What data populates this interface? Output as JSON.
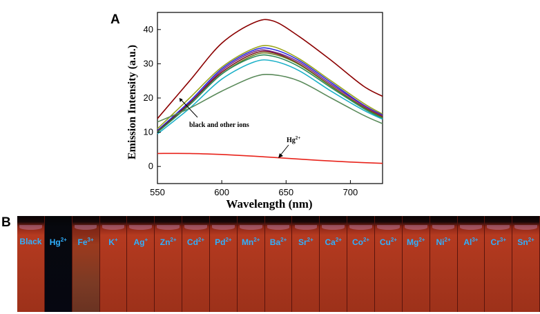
{
  "panel_a_label": "A",
  "panel_b_label": "B",
  "chart_data": {
    "type": "line",
    "xlabel": "Wavelength (nm)",
    "ylabel": "Emission Intensity (a.u.)",
    "xlim": [
      550,
      725
    ],
    "ylim": [
      -5,
      45
    ],
    "x_ticks": [
      550,
      600,
      650,
      700
    ],
    "y_ticks": [
      0,
      10,
      20,
      30,
      40
    ],
    "grid": false,
    "annotations": [
      {
        "text": "black and other ions",
        "arrow_to": [
          567,
          20
        ]
      },
      {
        "text": "Hg",
        "superscript": "2+",
        "arrow_to": [
          650,
          2.4
        ]
      }
    ],
    "series": [
      {
        "name": "top",
        "color": "#8b0000",
        "points": [
          [
            550,
            14
          ],
          [
            575,
            25
          ],
          [
            600,
            36
          ],
          [
            625,
            42
          ],
          [
            640,
            42.5
          ],
          [
            660,
            38
          ],
          [
            685,
            31
          ],
          [
            710,
            23.5
          ],
          [
            725,
            20.5
          ]
        ]
      },
      {
        "name": "yellow-green",
        "color": "#9aa51a",
        "points": [
          [
            550,
            11
          ],
          [
            575,
            20
          ],
          [
            600,
            29
          ],
          [
            625,
            34.5
          ],
          [
            640,
            35
          ],
          [
            660,
            31.5
          ],
          [
            685,
            25
          ],
          [
            710,
            18.5
          ],
          [
            725,
            15.3
          ]
        ]
      },
      {
        "name": "blue",
        "color": "#2a2ae0",
        "points": [
          [
            550,
            10.5
          ],
          [
            575,
            19
          ],
          [
            600,
            28.5
          ],
          [
            625,
            34
          ],
          [
            640,
            34.2
          ],
          [
            660,
            31
          ],
          [
            685,
            24.5
          ],
          [
            710,
            18
          ],
          [
            725,
            15
          ]
        ]
      },
      {
        "name": "purple",
        "color": "#7a2a8a",
        "points": [
          [
            550,
            10
          ],
          [
            575,
            18.5
          ],
          [
            600,
            28
          ],
          [
            625,
            33.5
          ],
          [
            640,
            33.5
          ],
          [
            660,
            30.5
          ],
          [
            685,
            24
          ],
          [
            710,
            17.8
          ],
          [
            725,
            14.8
          ]
        ]
      },
      {
        "name": "dark-red",
        "color": "#7a1818",
        "points": [
          [
            550,
            10.2
          ],
          [
            575,
            18.5
          ],
          [
            600,
            27.5
          ],
          [
            625,
            33
          ],
          [
            640,
            33.2
          ],
          [
            660,
            30
          ],
          [
            685,
            23.5
          ],
          [
            710,
            17.4
          ],
          [
            725,
            14.5
          ]
        ]
      },
      {
        "name": "olive",
        "color": "#6a7a20",
        "points": [
          [
            550,
            10
          ],
          [
            575,
            18
          ],
          [
            600,
            27
          ],
          [
            625,
            32.5
          ],
          [
            640,
            32.8
          ],
          [
            660,
            29.8
          ],
          [
            685,
            23.4
          ],
          [
            710,
            17.2
          ],
          [
            725,
            14.3
          ]
        ]
      },
      {
        "name": "teal-green",
        "color": "#2a8a5a",
        "points": [
          [
            550,
            10
          ],
          [
            575,
            18
          ],
          [
            600,
            27
          ],
          [
            625,
            32
          ],
          [
            640,
            32.2
          ],
          [
            660,
            29.2
          ],
          [
            685,
            23
          ],
          [
            710,
            17
          ],
          [
            725,
            14
          ]
        ]
      },
      {
        "name": "cyan",
        "color": "#1ab0c8",
        "points": [
          [
            550,
            9.5
          ],
          [
            575,
            17
          ],
          [
            600,
            25.5
          ],
          [
            625,
            30.5
          ],
          [
            640,
            30.8
          ],
          [
            660,
            28
          ],
          [
            685,
            22
          ],
          [
            710,
            16.5
          ],
          [
            725,
            13.8
          ]
        ]
      },
      {
        "name": "gray-green",
        "color": "#5a8a5a",
        "points": [
          [
            550,
            13
          ],
          [
            575,
            17
          ],
          [
            600,
            22
          ],
          [
            625,
            26.2
          ],
          [
            640,
            26.8
          ],
          [
            660,
            25
          ],
          [
            685,
            20
          ],
          [
            710,
            15
          ],
          [
            725,
            12.5
          ]
        ]
      },
      {
        "name": "Hg2+",
        "color": "#e8221a",
        "points": [
          [
            550,
            3.8
          ],
          [
            575,
            3.8
          ],
          [
            600,
            3.5
          ],
          [
            625,
            3.0
          ],
          [
            650,
            2.4
          ],
          [
            675,
            1.8
          ],
          [
            700,
            1.3
          ],
          [
            725,
            0.9
          ]
        ]
      }
    ]
  },
  "photo": {
    "tubes": [
      {
        "label": "Black",
        "charge": ""
      },
      {
        "label": "Hg",
        "charge": "2+"
      },
      {
        "label": "Fe",
        "charge": "3+"
      },
      {
        "label": "K",
        "charge": "+"
      },
      {
        "label": "Ag",
        "charge": "+"
      },
      {
        "label": "Zn",
        "charge": "2+"
      },
      {
        "label": "Cd",
        "charge": "2+"
      },
      {
        "label": "Pd",
        "charge": "2+"
      },
      {
        "label": "Mn",
        "charge": "2+"
      },
      {
        "label": "Ba",
        "charge": "2+"
      },
      {
        "label": "Sr",
        "charge": "2+"
      },
      {
        "label": "Ca",
        "charge": "2+"
      },
      {
        "label": "Co",
        "charge": "2+"
      },
      {
        "label": "Cu",
        "charge": "2+"
      },
      {
        "label": "Mg",
        "charge": "2+"
      },
      {
        "label": "Ni",
        "charge": "2+"
      },
      {
        "label": "Al",
        "charge": "3+"
      },
      {
        "label": "Cr",
        "charge": "3+"
      },
      {
        "label": "Sn",
        "charge": "2+"
      }
    ]
  }
}
